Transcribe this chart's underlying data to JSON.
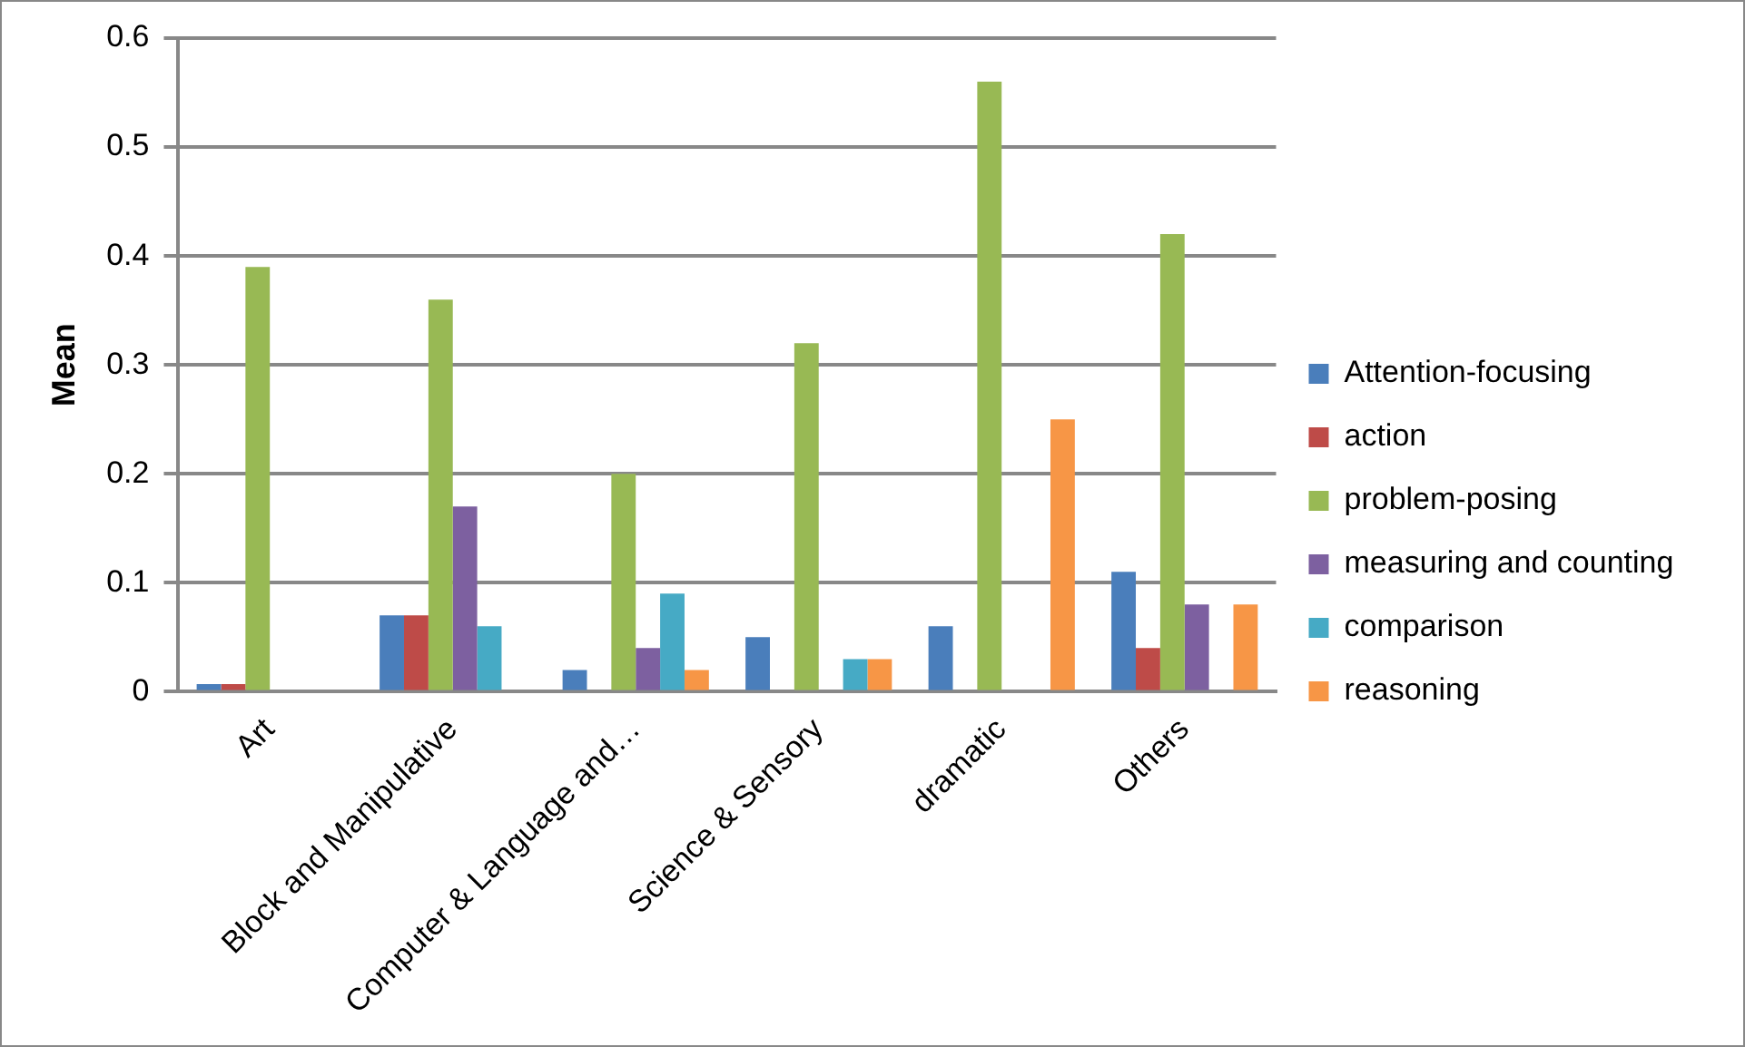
{
  "chart_data": {
    "type": "bar",
    "ylabel": "Mean",
    "categories": [
      "Art",
      "Block and Manipulative",
      "Computer & Language and…",
      "Science & Sensory",
      "dramatic",
      "Others"
    ],
    "series": [
      {
        "name": "Attention-focusing",
        "color": "#4a7ebb",
        "values": [
          0.007,
          0.07,
          0.02,
          0.05,
          0.06,
          0.11
        ]
      },
      {
        "name": "action",
        "color": "#be4b48",
        "values": [
          0.007,
          0.07,
          null,
          null,
          null,
          0.04
        ]
      },
      {
        "name": "problem-posing",
        "color": "#98b954",
        "values": [
          0.39,
          0.36,
          0.2,
          0.32,
          0.56,
          0.42
        ]
      },
      {
        "name": "measuring and counting",
        "color": "#7d60a0",
        "values": [
          null,
          0.17,
          0.04,
          null,
          null,
          0.08
        ]
      },
      {
        "name": "comparison",
        "color": "#46aac5",
        "values": [
          null,
          0.06,
          0.09,
          0.03,
          null,
          null
        ]
      },
      {
        "name": "reasoning",
        "color": "#f79646",
        "values": [
          null,
          null,
          0.02,
          0.03,
          0.25,
          0.08
        ]
      }
    ],
    "ylim": [
      0,
      0.6
    ],
    "yticks": [
      0,
      0.1,
      0.2,
      0.3,
      0.4,
      0.5,
      0.6
    ],
    "grid": "y",
    "legend": "right"
  }
}
